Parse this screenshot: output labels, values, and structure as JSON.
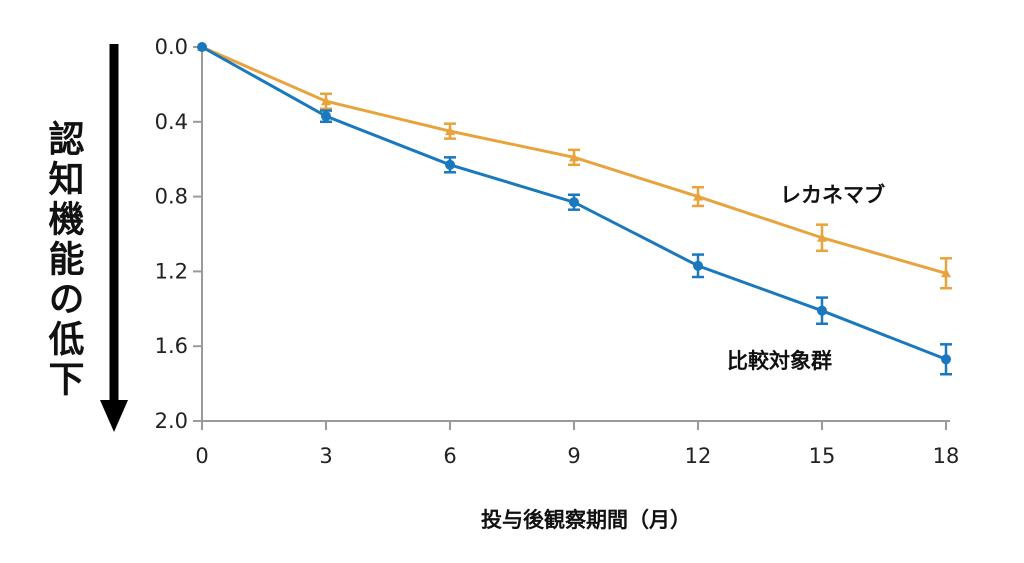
{
  "chart_data": {
    "type": "line",
    "xlabel": "投与後観察期間（月）",
    "ylabel": "認知機能の低下",
    "x": [
      0,
      3,
      6,
      9,
      12,
      15,
      18
    ],
    "x_ticks": [
      "0",
      "3",
      "6",
      "9",
      "12",
      "15",
      "18"
    ],
    "y_ticks": [
      "0.0",
      "0.4",
      "0.8",
      "1.2",
      "1.6",
      "2.0"
    ],
    "xlim": [
      0,
      18
    ],
    "ylim": [
      0.0,
      2.0
    ],
    "y_inverted": true,
    "grid": false,
    "series": [
      {
        "name": "レカネマブ",
        "color": "#e8a33c",
        "marker": "triangle",
        "values": [
          0.0,
          0.29,
          0.45,
          0.59,
          0.8,
          1.02,
          1.21
        ],
        "errors": [
          0.0,
          0.04,
          0.04,
          0.04,
          0.05,
          0.07,
          0.08
        ]
      },
      {
        "name": "比較対象群",
        "color": "#1a78be",
        "marker": "circle",
        "values": [
          0.0,
          0.37,
          0.63,
          0.83,
          1.17,
          1.41,
          1.67
        ],
        "errors": [
          0.0,
          0.03,
          0.04,
          0.04,
          0.06,
          0.07,
          0.08
        ]
      }
    ],
    "y_arrow": "down"
  }
}
